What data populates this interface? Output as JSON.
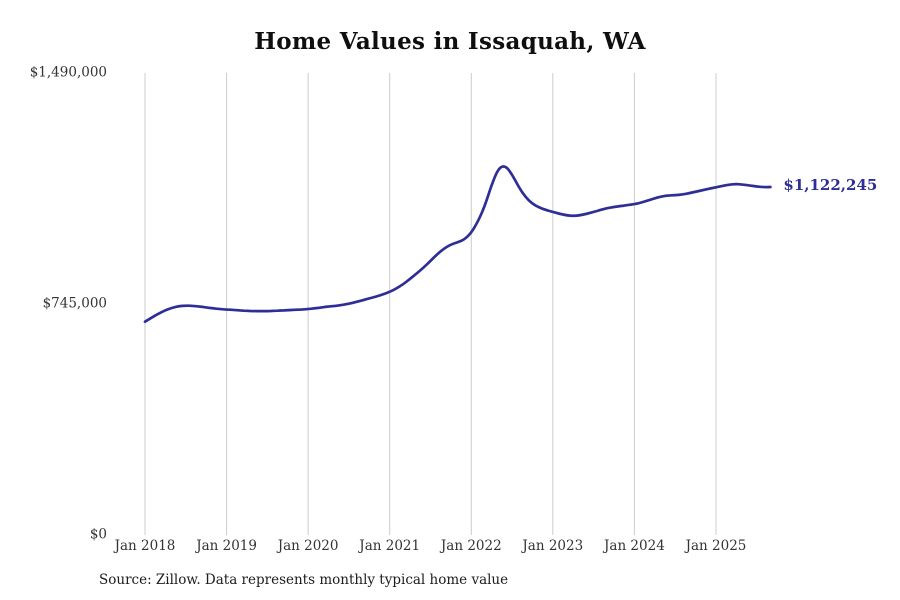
{
  "chart_data": {
    "type": "line",
    "title": "Home Values in Issaquah, WA",
    "x_tick_labels": [
      "Jan 2018",
      "Jan 2019",
      "Jan 2020",
      "Jan 2021",
      "Jan 2022",
      "Jan 2023",
      "Jan 2024",
      "Jan 2025"
    ],
    "y_tick_labels": [
      "$0",
      "$745,000",
      "$1,490,000"
    ],
    "y_ticks": [
      0,
      745000,
      1490000
    ],
    "ylim": [
      0,
      1490000
    ],
    "x_start": "Jan 2018",
    "x_interval": "monthly",
    "grid": "vertical-only",
    "legend": "none",
    "end_label": "$1,122,245",
    "line_color": "#2e2e96",
    "grid_color": "#cccccc",
    "tick_label_color": "#333333",
    "series": [
      {
        "name": "Monthly typical home value",
        "values": [
          688000,
          701000,
          714000,
          725000,
          733000,
          738000,
          740000,
          739000,
          737000,
          734000,
          731000,
          729000,
          727000,
          726000,
          724000,
          723000,
          722000,
          722000,
          722000,
          723000,
          724000,
          725000,
          726000,
          727000,
          729000,
          731000,
          734000,
          737000,
          739000,
          742000,
          746000,
          751000,
          757000,
          763000,
          769000,
          776000,
          784000,
          795000,
          809000,
          826000,
          844000,
          863000,
          884000,
          906000,
          924000,
          937000,
          944000,
          953000,
          975000,
          1012000,
          1062000,
          1130000,
          1183000,
          1192000,
          1163000,
          1121000,
          1089000,
          1068000,
          1056000,
          1048000,
          1042000,
          1036000,
          1031000,
          1029000,
          1031000,
          1036000,
          1042000,
          1048000,
          1054000,
          1058000,
          1061000,
          1064000,
          1067000,
          1072000,
          1079000,
          1086000,
          1092000,
          1095000,
          1096000,
          1098000,
          1102000,
          1107000,
          1112000,
          1117000,
          1121000,
          1126000,
          1130000,
          1132000,
          1130000,
          1127000,
          1124000,
          1122000,
          1122245
        ]
      }
    ]
  },
  "footer": {
    "source": "Source: Zillow. Data represents monthly typical home value"
  }
}
